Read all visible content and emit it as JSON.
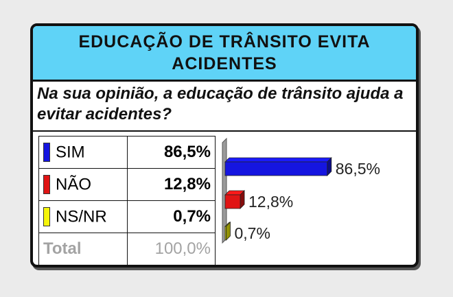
{
  "title": "EDUCAÇÃO DE TRÂNSITO EVITA ACIDENTES",
  "question": "Na sua opinião, a educação de trânsito ajuda a evitar acidentes?",
  "table": {
    "rows": [
      {
        "label": "SIM",
        "value": "86,5%",
        "color": "#1515e0"
      },
      {
        "label": "NÃO",
        "value": "12,8%",
        "color": "#e01414"
      },
      {
        "label": "NS/NR",
        "value": "0,7%",
        "color": "#f5f50a"
      }
    ],
    "total_label": "Total",
    "total_value": "100,0%"
  },
  "chart_data": {
    "type": "bar",
    "orientation": "horizontal",
    "categories": [
      "SIM",
      "NÃO",
      "NS/NR"
    ],
    "values": [
      86.5,
      12.8,
      0.7
    ],
    "data_labels": [
      "86,5%",
      "12,8%",
      "0,7%"
    ],
    "colors": [
      "#1515e0",
      "#e01414",
      "#f5f50a"
    ]
  }
}
